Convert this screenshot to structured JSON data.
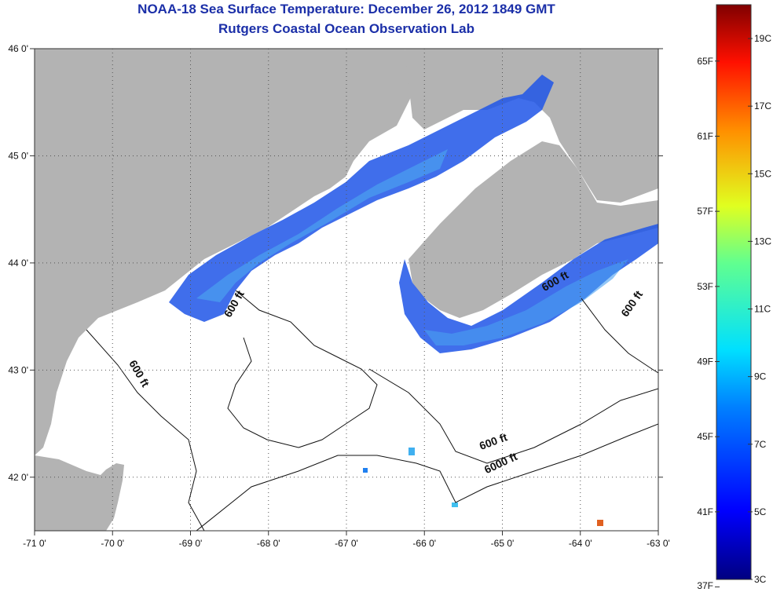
{
  "title_line1": "NOAA-18 Sea Surface Temperature:  December 26, 2012 1849 GMT",
  "title_line2": "Rutgers Coastal Ocean Observation Lab",
  "colors": {
    "land": "#b3b3b3",
    "ocean_cloud": "#ffffff",
    "title": "#1b2fa8",
    "warm_deep": "#1030e0",
    "warm_light": "#3a9ff0"
  },
  "map": {
    "lon_range": [
      -71,
      -63
    ],
    "lat_range": [
      41.5,
      46
    ],
    "lon_ticks": [
      {
        "value": -71,
        "label": "-71 0'"
      },
      {
        "value": -70,
        "label": "-70 0'"
      },
      {
        "value": -69,
        "label": "-69 0'"
      },
      {
        "value": -68,
        "label": "-68 0'"
      },
      {
        "value": -67,
        "label": "-67 0'"
      },
      {
        "value": -66,
        "label": "-66 0'"
      },
      {
        "value": -65,
        "label": "-65 0'"
      },
      {
        "value": -64,
        "label": "-64 0'"
      },
      {
        "value": -63,
        "label": "-63 0'"
      }
    ],
    "lat_ticks": [
      {
        "value": 46,
        "label": "46 0'"
      },
      {
        "value": 45,
        "label": "45 0'"
      },
      {
        "value": 44,
        "label": "44 0'"
      },
      {
        "value": 43,
        "label": "43 0'"
      },
      {
        "value": 42,
        "label": "42 0'"
      }
    ],
    "grid": "dotted",
    "contour_labels": [
      {
        "text": "600 ft",
        "lon": -68.4,
        "lat": 43.6,
        "angle": -60
      },
      {
        "text": "600 ft",
        "lon": -69.7,
        "lat": 42.95,
        "angle": 60
      },
      {
        "text": "600 ft",
        "lon": -64.3,
        "lat": 43.8,
        "angle": -30
      },
      {
        "text": "600 ft",
        "lon": -63.3,
        "lat": 43.6,
        "angle": -55
      },
      {
        "text": "600 ft",
        "lon": -65.1,
        "lat": 42.3,
        "angle": -20
      },
      {
        "text": "6000 ft",
        "lon": -65.0,
        "lat": 42.1,
        "angle": -25
      }
    ]
  },
  "colorbar": {
    "min_c": 3,
    "max_c": 20,
    "celsius_labels": [
      "3C",
      "5C",
      "7C",
      "9C",
      "11C",
      "13C",
      "15C",
      "17C",
      "19C"
    ],
    "fahrenheit_labels": [
      "37F",
      "41F",
      "45F",
      "49F",
      "53F",
      "57F",
      "61F",
      "65F"
    ]
  }
}
